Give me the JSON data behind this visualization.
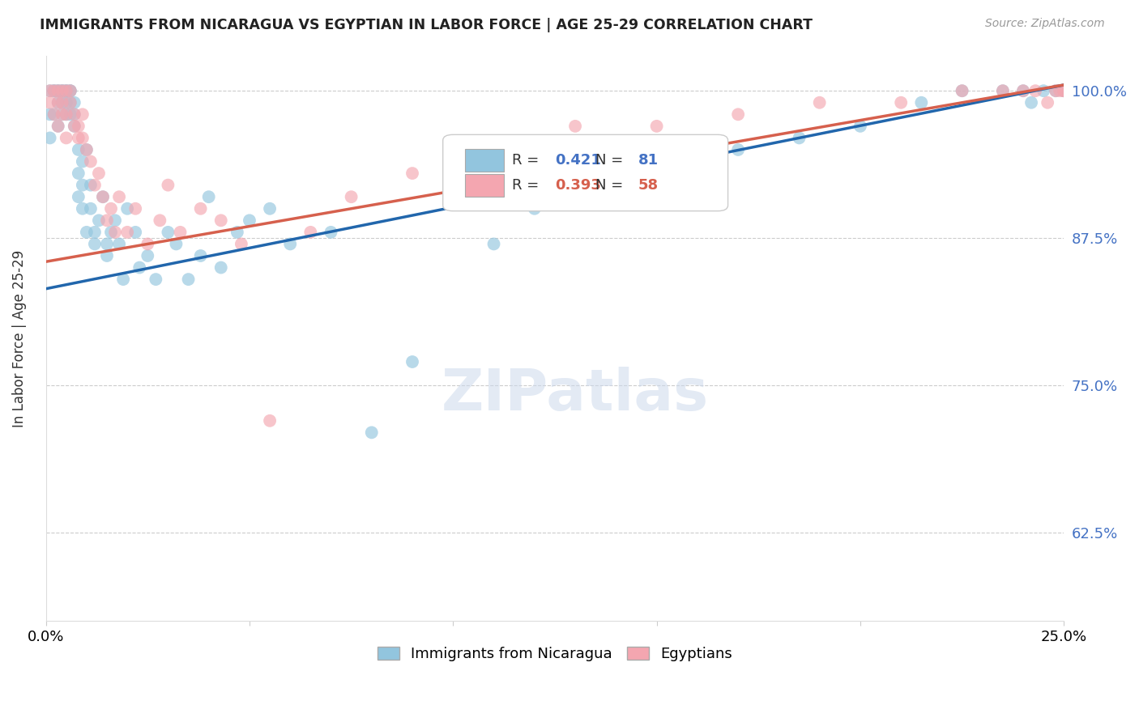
{
  "title": "IMMIGRANTS FROM NICARAGUA VS EGYPTIAN IN LABOR FORCE | AGE 25-29 CORRELATION CHART",
  "source": "Source: ZipAtlas.com",
  "ylabel": "In Labor Force | Age 25-29",
  "xlim": [
    0.0,
    0.25
  ],
  "ylim": [
    0.55,
    1.03
  ],
  "yticks": [
    0.625,
    0.75,
    0.875,
    1.0
  ],
  "ytick_labels": [
    "62.5%",
    "75.0%",
    "87.5%",
    "100.0%"
  ],
  "xticks": [
    0.0,
    0.05,
    0.1,
    0.15,
    0.2,
    0.25
  ],
  "xtick_labels": [
    "0.0%",
    "",
    "",
    "",
    "",
    "25.0%"
  ],
  "nicaragua_color": "#92c5de",
  "egyptian_color": "#f4a6b0",
  "nicaragua_line_color": "#2166ac",
  "egyptian_line_color": "#d6604d",
  "R_nicaragua": 0.421,
  "N_nicaragua": 81,
  "R_egyptian": 0.393,
  "N_egyptian": 58,
  "legend_labels": [
    "Immigrants from Nicaragua",
    "Egyptians"
  ],
  "background_color": "#ffffff",
  "grid_color": "#cccccc",
  "watermark": "ZIPatlas",
  "nic_line_x0": 0.0,
  "nic_line_y0": 0.832,
  "nic_line_x1": 0.25,
  "nic_line_y1": 1.005,
  "egy_line_x0": 0.0,
  "egy_line_y0": 0.855,
  "egy_line_x1": 0.25,
  "egy_line_y1": 1.005,
  "nicaragua_x": [
    0.001,
    0.001,
    0.001,
    0.002,
    0.002,
    0.002,
    0.003,
    0.003,
    0.003,
    0.003,
    0.004,
    0.004,
    0.004,
    0.004,
    0.005,
    0.005,
    0.005,
    0.005,
    0.006,
    0.006,
    0.006,
    0.006,
    0.007,
    0.007,
    0.007,
    0.008,
    0.008,
    0.008,
    0.009,
    0.009,
    0.009,
    0.01,
    0.01,
    0.011,
    0.011,
    0.012,
    0.012,
    0.013,
    0.014,
    0.015,
    0.015,
    0.016,
    0.017,
    0.018,
    0.019,
    0.02,
    0.022,
    0.023,
    0.025,
    0.027,
    0.03,
    0.032,
    0.035,
    0.038,
    0.04,
    0.043,
    0.047,
    0.05,
    0.055,
    0.06,
    0.07,
    0.08,
    0.09,
    0.1,
    0.11,
    0.12,
    0.13,
    0.14,
    0.155,
    0.17,
    0.185,
    0.2,
    0.215,
    0.225,
    0.235,
    0.24,
    0.242,
    0.245,
    0.248,
    0.25,
    0.25
  ],
  "nicaragua_y": [
    1.0,
    0.98,
    0.96,
    1.0,
    1.0,
    0.98,
    1.0,
    1.0,
    0.99,
    0.97,
    1.0,
    0.99,
    0.98,
    1.0,
    1.0,
    1.0,
    0.99,
    0.98,
    1.0,
    1.0,
    0.99,
    0.98,
    0.97,
    0.98,
    0.99,
    0.95,
    0.93,
    0.91,
    0.94,
    0.92,
    0.9,
    0.95,
    0.88,
    0.92,
    0.9,
    0.88,
    0.87,
    0.89,
    0.91,
    0.87,
    0.86,
    0.88,
    0.89,
    0.87,
    0.84,
    0.9,
    0.88,
    0.85,
    0.86,
    0.84,
    0.88,
    0.87,
    0.84,
    0.86,
    0.91,
    0.85,
    0.88,
    0.89,
    0.9,
    0.87,
    0.88,
    0.71,
    0.77,
    0.91,
    0.87,
    0.9,
    0.91,
    0.91,
    0.94,
    0.95,
    0.96,
    0.97,
    0.99,
    1.0,
    1.0,
    1.0,
    0.99,
    1.0,
    1.0,
    1.0,
    1.0
  ],
  "egypt_x": [
    0.001,
    0.001,
    0.002,
    0.002,
    0.003,
    0.003,
    0.003,
    0.004,
    0.004,
    0.004,
    0.005,
    0.005,
    0.005,
    0.006,
    0.006,
    0.007,
    0.007,
    0.008,
    0.008,
    0.009,
    0.009,
    0.01,
    0.011,
    0.012,
    0.013,
    0.014,
    0.015,
    0.016,
    0.017,
    0.018,
    0.02,
    0.022,
    0.025,
    0.028,
    0.03,
    0.033,
    0.038,
    0.043,
    0.048,
    0.055,
    0.065,
    0.075,
    0.09,
    0.11,
    0.13,
    0.15,
    0.17,
    0.19,
    0.21,
    0.225,
    0.235,
    0.24,
    0.243,
    0.246,
    0.248,
    0.249,
    0.25,
    0.25
  ],
  "egypt_y": [
    1.0,
    0.99,
    1.0,
    0.98,
    1.0,
    0.99,
    0.97,
    1.0,
    0.99,
    0.98,
    1.0,
    0.98,
    0.96,
    1.0,
    0.99,
    0.97,
    0.98,
    0.96,
    0.97,
    0.98,
    0.96,
    0.95,
    0.94,
    0.92,
    0.93,
    0.91,
    0.89,
    0.9,
    0.88,
    0.91,
    0.88,
    0.9,
    0.87,
    0.89,
    0.92,
    0.88,
    0.9,
    0.89,
    0.87,
    0.72,
    0.88,
    0.91,
    0.93,
    0.95,
    0.97,
    0.97,
    0.98,
    0.99,
    0.99,
    1.0,
    1.0,
    1.0,
    1.0,
    0.99,
    1.0,
    1.0,
    1.0,
    1.0
  ]
}
